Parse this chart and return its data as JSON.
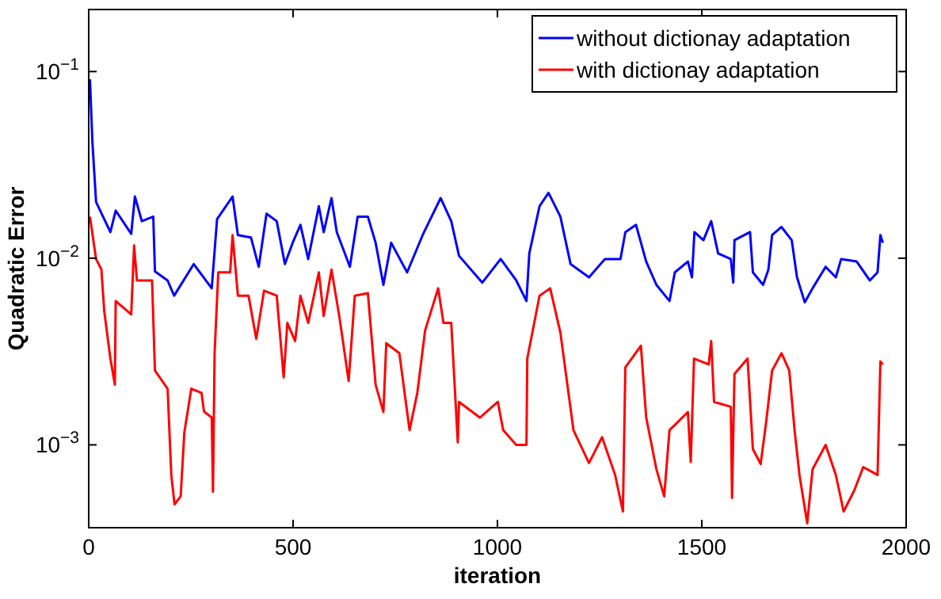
{
  "chart_data": {
    "type": "line",
    "xlabel": "iteration",
    "ylabel": "Quadratic Error",
    "log": "y",
    "xlim": [
      0,
      2000
    ],
    "xticks": [
      0,
      500,
      1000,
      1500,
      2000
    ],
    "ylim": [
      0.00036,
      0.215
    ],
    "yticks": [
      {
        "value": 0.001,
        "label": "10$^{−3}$"
      },
      {
        "value": 0.01,
        "label": "10$^{−2}$"
      },
      {
        "value": 0.1,
        "label": "10$^{−1}$"
      }
    ],
    "grid": false,
    "legend": "top right",
    "marker": "none",
    "line_style": "solid",
    "series": [
      {
        "name": "without dictionay adaptation",
        "color": "#0000ff",
        "x": [
          3,
          9,
          18,
          53,
          66,
          104,
          113,
          130,
          158,
          162,
          193,
          209,
          257,
          301,
          314,
          352,
          365,
          397,
          416,
          435,
          460,
          480,
          499,
          518,
          537,
          563,
          575,
          594,
          607,
          639,
          658,
          683,
          702,
          721,
          740,
          779,
          817,
          861,
          887,
          906,
          963,
          1008,
          1046,
          1071,
          1078,
          1103,
          1125,
          1154,
          1179,
          1224,
          1263,
          1301,
          1313,
          1339,
          1364,
          1389,
          1421,
          1434,
          1466,
          1476,
          1482,
          1504,
          1523,
          1540,
          1571,
          1577,
          1580,
          1618,
          1625,
          1650,
          1663,
          1672,
          1695,
          1720,
          1733,
          1752,
          1771,
          1803,
          1828,
          1841,
          1879,
          1911,
          1930,
          1937,
          1943
        ],
        "values": [
          0.091,
          0.042,
          0.02,
          0.0138,
          0.018,
          0.0135,
          0.0214,
          0.0158,
          0.0167,
          0.0085,
          0.0076,
          0.0063,
          0.0093,
          0.0069,
          0.0162,
          0.0214,
          0.0133,
          0.0129,
          0.009,
          0.0173,
          0.0158,
          0.0093,
          0.0121,
          0.0151,
          0.0099,
          0.019,
          0.0138,
          0.021,
          0.0138,
          0.009,
          0.0167,
          0.0167,
          0.0121,
          0.0072,
          0.0121,
          0.0084,
          0.0133,
          0.021,
          0.0158,
          0.0103,
          0.0074,
          0.0099,
          0.0076,
          0.0059,
          0.0106,
          0.019,
          0.0224,
          0.0167,
          0.0093,
          0.0079,
          0.0099,
          0.0099,
          0.0138,
          0.0151,
          0.0096,
          0.0072,
          0.0059,
          0.0084,
          0.0096,
          0.0079,
          0.0138,
          0.0125,
          0.0158,
          0.0106,
          0.0099,
          0.0074,
          0.0125,
          0.0138,
          0.0084,
          0.0072,
          0.0087,
          0.0133,
          0.0147,
          0.0125,
          0.0079,
          0.0058,
          0.0069,
          0.009,
          0.0079,
          0.0099,
          0.0096,
          0.0076,
          0.0084,
          0.0133,
          0.0121
        ]
      },
      {
        "name": "with dictionay adaptation",
        "color": "#ff0000",
        "x": [
          3,
          18,
          31,
          38,
          53,
          64,
          66,
          104,
          111,
          118,
          155,
          162,
          193,
          202,
          210,
          225,
          234,
          251,
          276,
          282,
          301,
          304,
          308,
          317,
          346,
          352,
          365,
          391,
          410,
          429,
          460,
          477,
          486,
          505,
          518,
          537,
          563,
          575,
          594,
          613,
          636,
          651,
          683,
          702,
          721,
          728,
          760,
          785,
          804,
          823,
          855,
          868,
          887,
          903,
          906,
          957,
          1001,
          1014,
          1046,
          1071,
          1073,
          1103,
          1129,
          1154,
          1186,
          1224,
          1256,
          1288,
          1307,
          1313,
          1351,
          1364,
          1389,
          1408,
          1421,
          1466,
          1473,
          1481,
          1517,
          1523,
          1530,
          1571,
          1574,
          1580,
          1612,
          1625,
          1644,
          1657,
          1672,
          1695,
          1714,
          1727,
          1739,
          1758,
          1771,
          1803,
          1828,
          1847,
          1873,
          1895,
          1930,
          1937,
          1943
        ],
        "values": [
          0.0167,
          0.0099,
          0.0087,
          0.0052,
          0.0029,
          0.0021,
          0.0059,
          0.005,
          0.0117,
          0.0076,
          0.0076,
          0.0025,
          0.002,
          0.00069,
          0.00048,
          0.00053,
          0.00117,
          0.002,
          0.0019,
          0.00151,
          0.0014,
          0.00056,
          0.0031,
          0.0084,
          0.0084,
          0.0133,
          0.0063,
          0.0063,
          0.0037,
          0.0067,
          0.0063,
          0.0023,
          0.0045,
          0.0036,
          0.0063,
          0.0045,
          0.0084,
          0.0049,
          0.0087,
          0.0049,
          0.0022,
          0.0063,
          0.0065,
          0.0021,
          0.0015,
          0.0035,
          0.0031,
          0.0012,
          0.0019,
          0.0041,
          0.0069,
          0.0045,
          0.0045,
          0.00103,
          0.0017,
          0.0014,
          0.0017,
          0.0012,
          0.001,
          0.001,
          0.0029,
          0.0063,
          0.0069,
          0.004,
          0.0012,
          0.0008,
          0.0011,
          0.00069,
          0.00044,
          0.0026,
          0.0034,
          0.0014,
          0.00074,
          0.00053,
          0.0012,
          0.0015,
          0.00081,
          0.0029,
          0.0027,
          0.0036,
          0.0017,
          0.0016,
          0.00052,
          0.0024,
          0.0029,
          0.00095,
          0.00079,
          0.0013,
          0.0025,
          0.0031,
          0.0025,
          0.0012,
          0.00069,
          0.00038,
          0.00074,
          0.001,
          0.00069,
          0.00044,
          0.00057,
          0.00076,
          0.00069,
          0.0028,
          0.0027
        ]
      }
    ]
  }
}
